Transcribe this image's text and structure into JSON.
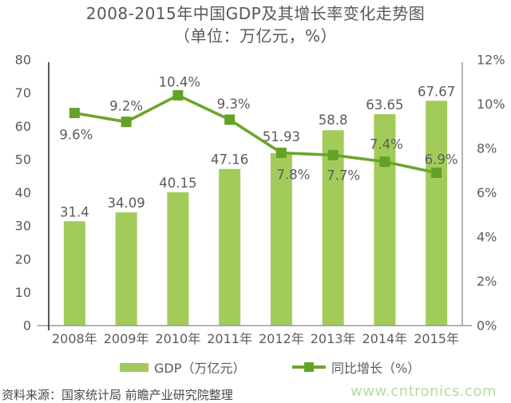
{
  "chart_data": {
    "type": "bar+line",
    "title": "2008-2015年中国GDP及其增长率变化走势图",
    "subtitle": "（单位：万亿元，%）",
    "categories": [
      "2008年",
      "2009年",
      "2010年",
      "2011年",
      "2012年",
      "2013年",
      "2014年",
      "2015年"
    ],
    "series": [
      {
        "name": "GDP（万亿元）",
        "type": "bar",
        "axis": "left",
        "color": "#a2cb5a",
        "values": [
          31.4,
          34.09,
          40.15,
          47.16,
          51.93,
          58.8,
          63.65,
          67.67
        ],
        "labels": [
          "31.4",
          "34.09",
          "40.15",
          "47.16",
          "51.93",
          "58.8",
          "63.65",
          "67.67"
        ],
        "label_dy": [
          -6,
          -6,
          -6,
          -6,
          -15,
          -7,
          -6,
          -6
        ]
      },
      {
        "name": "同比增长（%）",
        "type": "line",
        "axis": "right",
        "color": "#6ca52c",
        "marker_color": "#63a226",
        "values": [
          9.6,
          9.2,
          10.4,
          9.3,
          7.8,
          7.7,
          7.4,
          6.9
        ],
        "labels": [
          "9.6%",
          "9.2%",
          "10.4%",
          "9.3%",
          "7.8%",
          "7.7%",
          "7.4%",
          "6.9%"
        ],
        "label_dx": [
          2,
          0,
          2,
          5,
          15,
          13,
          2,
          6
        ],
        "label_dy": [
          33,
          -14,
          -11,
          -14,
          33,
          31,
          -16,
          -11
        ]
      }
    ],
    "left_axis": {
      "min": 0,
      "max": 80,
      "ticks": [
        "0",
        "10",
        "20",
        "30",
        "40",
        "50",
        "60",
        "70",
        "80"
      ]
    },
    "right_axis": {
      "min": 0,
      "max": 12,
      "ticks": [
        "0%",
        "2%",
        "4%",
        "6%",
        "8%",
        "10%",
        "12%"
      ]
    },
    "grid": false,
    "legend_position": "bottom"
  },
  "footer": {
    "source": "资料来源：国家统计局 前瞻产业研究院整理",
    "watermark": "www.cntronics.com"
  },
  "colors": {
    "bar": "#a2cb5a",
    "line": "#6ca52c",
    "marker": "#63a226",
    "text": "#5b5b5b",
    "axis_dark": "#454545",
    "axis_light": "#9a9a9a",
    "watermark": "#bcd9a4"
  }
}
